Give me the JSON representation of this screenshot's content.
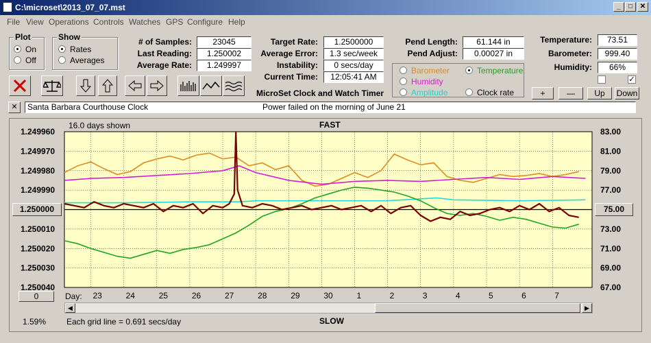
{
  "window": {
    "title": "C:\\microset\\2013_07_07.mst"
  },
  "menu": [
    "File",
    "View",
    "Operations",
    "Controls",
    "Watches",
    "GPS",
    "Configure",
    "Help"
  ],
  "plot_group": {
    "title": "Plot",
    "on": "On",
    "off": "Off"
  },
  "show_group": {
    "title": "Show",
    "rates": "Rates",
    "averages": "Averages"
  },
  "stats": {
    "samples_label": "# of Samples:",
    "samples": "23045",
    "last_label": "Last Reading:",
    "last": "1.250002",
    "avg_label": "Average Rate:",
    "avg": "1.249997"
  },
  "rate": {
    "target_label": "Target Rate:",
    "target": "1.2500000",
    "error_label": "Average Error:",
    "error": "1.3 sec/week",
    "instab_label": "Instability:",
    "instab": "0 secs/day",
    "time_label": "Current Time:",
    "time": "12:05:41 AM"
  },
  "pend": {
    "length_label": "Pend Length:",
    "length": "61.144 in",
    "adjust_label": "Pend Adjust:",
    "adjust": "0.00027 in"
  },
  "env": {
    "temp_label": "Temperature:",
    "temp": "73.51",
    "baro_label": "Barometer:",
    "baro": "999.40",
    "hum_label": "Humidity:",
    "hum": "66%"
  },
  "overlays": {
    "barometer": "Barometer",
    "temperature": "Temperature",
    "humidity": "Humidity",
    "amplitude": "Amplitude",
    "clockrate": "Clock rate"
  },
  "colors": {
    "barometer": "#e08a1e",
    "temperature": "#1ea51e",
    "humidity": "#d21ed2",
    "amplitude": "#1edcdc",
    "rate": "#7a0000",
    "plot_bg": "#ffffc8"
  },
  "buttons": {
    "plus": "+",
    "minus": "—",
    "up": "Up",
    "down": "Down"
  },
  "app_name": "MicroSet Clock and Watch Timer",
  "note": {
    "close": "✕",
    "left": "Santa Barbara Courthouse Clock",
    "center": "Power failed on the morning of June 21"
  },
  "chart_data": {
    "type": "line",
    "title": "FAST",
    "bottom_title": "SLOW",
    "days_shown": "16.0 days shown",
    "grid_note": "Each grid line = 0.691 secs/day",
    "percent": "1.59%",
    "left_value_box": "1.250000",
    "right_value_box": "75.00",
    "bottom_value_box": "0",
    "x_prefix": "Day:",
    "x_ticks": [
      "23",
      "24",
      "25",
      "26",
      "27",
      "28",
      "29",
      "30",
      "1",
      "2",
      "3",
      "4",
      "5",
      "6",
      "7"
    ],
    "y_left_ticks": [
      "1.249960",
      "1.249970",
      "1.249980",
      "1.249990",
      "1.250000",
      "1.250010",
      "1.250020",
      "1.250030",
      "1.250040"
    ],
    "y_right_ticks": [
      "83.00",
      "81.00",
      "79.00",
      "77.00",
      "75.00",
      "73.00",
      "71.00",
      "69.00",
      "67.00"
    ],
    "ylim_left": [
      1.24996,
      1.25004
    ],
    "ylim_right": [
      67,
      83
    ],
    "xlim": [
      22.2,
      38.2
    ],
    "series": [
      {
        "key": "barometer",
        "x": [
          22.2,
          22.6,
          23.0,
          23.4,
          23.8,
          24.2,
          24.6,
          25.0,
          25.4,
          25.8,
          26.2,
          26.6,
          27.0,
          27.4,
          27.8,
          28.2,
          28.6,
          29.0,
          29.4,
          29.8,
          30.2,
          30.6,
          31.0,
          31.4,
          31.8,
          32.2,
          32.6,
          33.0,
          33.4,
          33.8,
          34.2,
          34.6,
          35.0,
          35.4,
          35.8,
          36.2,
          36.6,
          37.0,
          37.4,
          37.8
        ],
        "y": [
          78.8,
          79.5,
          79.9,
          79.2,
          78.6,
          78.9,
          79.8,
          80.2,
          80.5,
          80.1,
          80.6,
          80.8,
          80.2,
          80.4,
          79.5,
          79.8,
          79.1,
          79.5,
          78.0,
          77.4,
          77.6,
          78.2,
          78.8,
          78.3,
          79.0,
          80.7,
          80.1,
          79.6,
          79.8,
          78.4,
          78.0,
          77.8,
          78.2,
          78.6,
          78.4,
          78.5,
          78.7,
          78.4,
          78.6,
          78.9
        ]
      },
      {
        "key": "humidity",
        "x": [
          22.2,
          23.0,
          24.0,
          25.0,
          26.0,
          27.0,
          27.5,
          28.0,
          29.0,
          30.0,
          31.0,
          32.0,
          33.0,
          34.0,
          35.0,
          36.0,
          37.0,
          38.0
        ],
        "y": [
          78.0,
          78.2,
          78.3,
          78.5,
          78.7,
          79.0,
          79.5,
          78.8,
          78.0,
          77.6,
          77.9,
          78.0,
          77.9,
          78.1,
          78.3,
          78.1,
          78.4,
          78.2
        ]
      },
      {
        "key": "amplitude",
        "x": [
          22.2,
          24.0,
          26.0,
          27.5,
          28.0,
          30.0,
          32.0,
          33.5,
          34.0,
          36.0,
          38.0
        ],
        "y": [
          75.7,
          75.7,
          75.8,
          75.8,
          75.9,
          75.9,
          75.9,
          76.2,
          76.0,
          75.9,
          76.0
        ]
      },
      {
        "key": "temperature",
        "x": [
          22.2,
          22.6,
          23.0,
          23.4,
          23.8,
          24.2,
          24.6,
          25.0,
          25.4,
          25.8,
          26.2,
          26.6,
          27.0,
          27.4,
          27.8,
          28.2,
          28.6,
          29.0,
          29.4,
          29.8,
          30.2,
          30.6,
          31.0,
          31.4,
          31.8,
          32.2,
          32.6,
          33.0,
          33.4,
          33.8,
          34.2,
          34.6,
          35.0,
          35.4,
          35.8,
          36.2,
          36.6,
          37.0,
          37.4,
          37.8
        ],
        "y": [
          71.8,
          71.5,
          71.0,
          70.6,
          70.2,
          70.0,
          70.4,
          70.8,
          70.5,
          70.9,
          71.1,
          71.4,
          72.0,
          72.6,
          73.4,
          74.3,
          74.8,
          75.1,
          75.6,
          76.2,
          76.6,
          77.0,
          77.3,
          77.2,
          77.0,
          76.8,
          76.4,
          75.9,
          75.2,
          74.6,
          74.4,
          74.6,
          74.3,
          73.9,
          74.2,
          74.0,
          73.6,
          73.2,
          73.1,
          73.5
        ]
      },
      {
        "key": "rate",
        "x": [
          22.2,
          22.5,
          22.8,
          23.1,
          23.4,
          23.7,
          24.0,
          24.3,
          24.6,
          24.9,
          25.2,
          25.5,
          25.8,
          26.1,
          26.4,
          26.7,
          27.0,
          27.2,
          27.35,
          27.4,
          27.45,
          27.6,
          27.9,
          28.2,
          28.5,
          28.8,
          29.1,
          29.4,
          29.7,
          30.0,
          30.3,
          30.6,
          30.9,
          31.2,
          31.5,
          31.8,
          32.1,
          32.4,
          32.7,
          33.0,
          33.3,
          33.6,
          33.9,
          34.2,
          34.5,
          34.8,
          35.1,
          35.4,
          35.7,
          36.0,
          36.3,
          36.6,
          36.9,
          37.2,
          37.5,
          37.8
        ],
        "y": [
          1.249997,
          1.249998,
          1.249999,
          1.249996,
          1.249998,
          1.249999,
          1.249997,
          1.249998,
          1.249999,
          1.249997,
          1.250001,
          1.249998,
          1.249999,
          1.249997,
          1.250002,
          1.249998,
          1.249999,
          1.249997,
          1.249992,
          1.24996,
          1.24999,
          1.249998,
          1.249999,
          1.249997,
          1.249998,
          1.25,
          1.249999,
          1.249998,
          1.25,
          1.249999,
          1.249998,
          1.25,
          1.249999,
          1.249998,
          1.250001,
          1.249998,
          1.250002,
          1.249999,
          1.249998,
          1.250003,
          1.250006,
          1.250004,
          1.250005,
          1.250001,
          1.250003,
          1.250002,
          1.25,
          1.249999,
          1.250001,
          1.249998,
          1.25,
          1.249997,
          1.250001,
          1.249999,
          1.250003,
          1.250004
        ]
      }
    ]
  }
}
